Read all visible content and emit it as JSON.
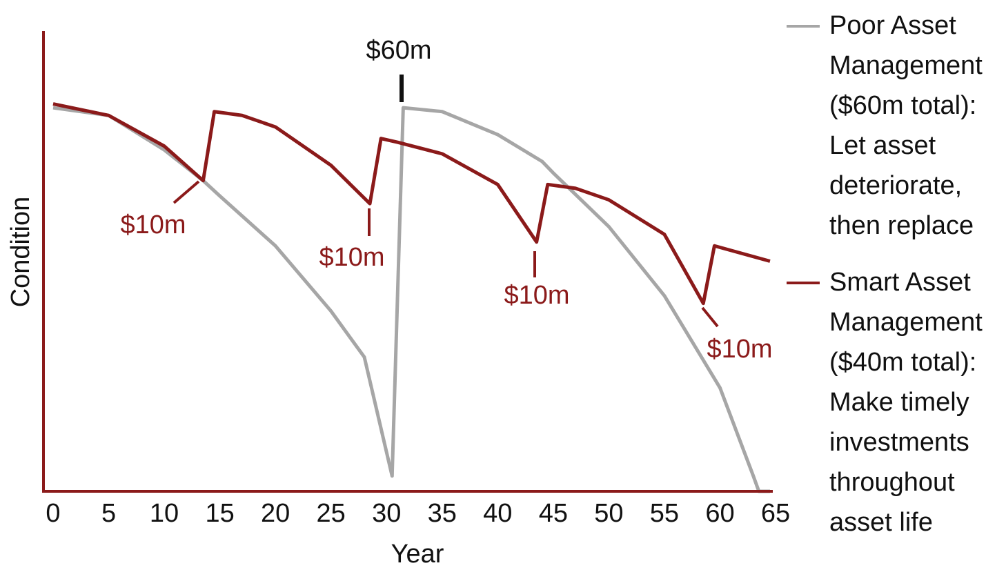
{
  "chart_data": {
    "type": "line",
    "x_label": "Year",
    "y_label": "Condition",
    "xlim": [
      0,
      65
    ],
    "xticks": [
      0,
      5,
      10,
      15,
      20,
      25,
      30,
      35,
      40,
      45,
      50,
      55,
      60,
      65
    ],
    "ylim": [
      0,
      120
    ],
    "axis_color": "#8b1a1a",
    "series": [
      {
        "name": "Poor Asset Management ($60m total): Let asset deteriorate, then replace",
        "color": "#a6a6a6",
        "x": [
          0,
          5,
          10,
          13.5,
          15,
          20,
          25,
          28,
          30.5,
          31.5,
          35,
          40,
          44,
          45,
          50,
          55,
          60,
          63,
          63.5,
          64.5
        ],
        "values": [
          100,
          98,
          89,
          81,
          77,
          64,
          47,
          35,
          4,
          100,
          99,
          93,
          86,
          83,
          69,
          51,
          27,
          4,
          0,
          0
        ]
      },
      {
        "name": "Smart Asset Management ($40m total): Make timely investments throughout asset life",
        "color": "#8b1a1a",
        "x": [
          0,
          5,
          10,
          13.5,
          14.5,
          17,
          20,
          25,
          28.5,
          29.5,
          31,
          35,
          40,
          43.5,
          44.5,
          47,
          50,
          55,
          58.5,
          59.5,
          62,
          64.5
        ],
        "values": [
          101,
          98,
          90,
          81,
          99,
          98,
          95,
          85,
          75,
          92,
          91,
          88,
          80,
          65,
          80,
          79,
          76,
          67,
          49,
          64,
          62,
          60
        ]
      }
    ],
    "annotations": [
      {
        "text": "$60m",
        "x": 31.5
      },
      {
        "text": "$10m",
        "x": 13.5
      },
      {
        "text": "$10m",
        "x": 28.5
      },
      {
        "text": "$10m",
        "x": 43.5
      },
      {
        "text": "$10m",
        "x": 58.5
      }
    ]
  }
}
